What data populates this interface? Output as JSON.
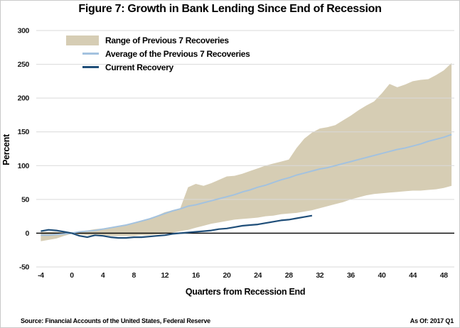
{
  "figure": {
    "title": "Figure 7: Growth in Bank Lending Since End of Recession",
    "source": "Source: Financial Accounts of the United States, Federal Reserve",
    "as_of": "As Of: 2017 Q1"
  },
  "chart_data": {
    "type": "area",
    "title": "Figure 7: Growth in Bank Lending Since End of Recession",
    "xlabel": "Quarters from Recession End",
    "ylabel": "Percent",
    "xlim": [
      -4.8,
      49.3
    ],
    "ylim": [
      -50,
      300
    ],
    "xticks": [
      -4,
      0,
      4,
      8,
      12,
      16,
      20,
      24,
      28,
      32,
      36,
      40,
      44,
      48
    ],
    "yticks": [
      -50,
      0,
      50,
      100,
      150,
      200,
      250,
      300
    ],
    "grid": "horizontal-only",
    "grid_color": "#d9d9d9",
    "zero_line_color": "#000000",
    "legend_position": "top-left-inside",
    "x": [
      -4,
      -3,
      -2,
      -1,
      0,
      1,
      2,
      3,
      4,
      5,
      6,
      7,
      8,
      9,
      10,
      11,
      12,
      13,
      14,
      15,
      16,
      17,
      18,
      19,
      20,
      21,
      22,
      23,
      24,
      25,
      26,
      27,
      28,
      29,
      30,
      31,
      32,
      33,
      34,
      35,
      36,
      37,
      38,
      39,
      40,
      41,
      42,
      43,
      44,
      45,
      46,
      47,
      48,
      49
    ],
    "series": [
      {
        "name": "Range of Previous 7 Recoveries",
        "type": "band",
        "color": "#d6cdb4",
        "high": [
          2,
          2,
          2,
          1,
          1,
          3,
          4,
          6,
          7,
          9,
          11,
          13,
          15,
          18,
          22,
          26,
          31,
          34,
          37,
          68,
          73,
          70,
          74,
          79,
          84,
          85,
          88,
          92,
          96,
          100,
          103,
          106,
          109,
          126,
          140,
          149,
          155,
          157,
          160,
          167,
          174,
          182,
          189,
          195,
          207,
          221,
          216,
          220,
          225,
          227,
          228,
          234,
          241,
          252
        ],
        "low": [
          -12,
          -10,
          -8,
          -4,
          -1,
          -2,
          -3,
          -3,
          -3,
          -4,
          -4,
          -4,
          -4,
          -3,
          -3,
          -2,
          -1,
          1,
          3,
          5,
          8,
          11,
          14,
          16,
          18,
          20,
          21,
          22,
          23,
          25,
          26,
          28,
          29,
          30,
          32,
          34,
          37,
          40,
          43,
          46,
          50,
          53,
          56,
          58,
          59,
          60,
          61,
          62,
          63,
          63,
          64,
          65,
          67,
          70
        ]
      },
      {
        "name": "Average of the Previous 7 Recoveries",
        "type": "line",
        "color": "#a3c2df",
        "values": [
          -3,
          -3,
          -2,
          -1,
          0,
          2,
          3,
          4,
          6,
          8,
          10,
          12,
          15,
          18,
          21,
          25,
          29,
          33,
          36,
          40,
          42,
          45,
          48,
          51,
          54,
          57,
          61,
          64,
          68,
          71,
          75,
          79,
          82,
          86,
          89,
          92,
          95,
          97,
          100,
          103,
          106,
          109,
          112,
          115,
          118,
          121,
          124,
          126,
          129,
          132,
          136,
          139,
          142,
          146
        ]
      },
      {
        "name": "Current Recovery",
        "type": "line",
        "color": "#1f4e79",
        "x": [
          -4,
          -3,
          -2,
          -1,
          0,
          1,
          2,
          3,
          4,
          5,
          6,
          7,
          8,
          9,
          10,
          11,
          12,
          13,
          14,
          15,
          16,
          17,
          18,
          19,
          20,
          21,
          22,
          23,
          24,
          25,
          26,
          27,
          28,
          29,
          30,
          31
        ],
        "values": [
          3,
          5,
          4,
          2,
          0,
          -4,
          -6,
          -3,
          -4,
          -6,
          -7,
          -7,
          -6,
          -6,
          -5,
          -4,
          -3,
          -1,
          0,
          1,
          2,
          3,
          4,
          6,
          7,
          9,
          11,
          12,
          13,
          15,
          17,
          19,
          20,
          22,
          24,
          26
        ]
      }
    ]
  }
}
